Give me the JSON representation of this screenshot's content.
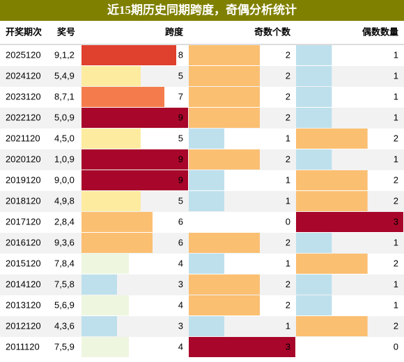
{
  "header": {
    "title": "近15期历史同期跨度，奇偶分析统计"
  },
  "table": {
    "columns": [
      "开奖期次",
      "奖号",
      "跨度",
      "奇数个数",
      "偶数数量"
    ],
    "rows": [
      [
        "2025120",
        "9,1,2",
        8,
        2,
        1
      ],
      [
        "2024120",
        "5,4,9",
        5,
        2,
        1
      ],
      [
        "2023120",
        "8,7,1",
        7,
        2,
        1
      ],
      [
        "2022120",
        "5,0,9",
        9,
        2,
        1
      ],
      [
        "2021120",
        "4,5,0",
        5,
        1,
        2
      ],
      [
        "2020120",
        "1,0,9",
        9,
        2,
        1
      ],
      [
        "2019120",
        "9,0,0",
        9,
        1,
        2
      ],
      [
        "2018120",
        "4,9,8",
        5,
        1,
        2
      ],
      [
        "2017120",
        "2,8,4",
        6,
        0,
        3
      ],
      [
        "2016120",
        "9,3,6",
        6,
        2,
        1
      ],
      [
        "2015120",
        "7,8,4",
        4,
        1,
        2
      ],
      [
        "2014120",
        "7,5,8",
        3,
        2,
        1
      ],
      [
        "2013120",
        "5,6,9",
        4,
        2,
        1
      ],
      [
        "2012120",
        "4,3,6",
        3,
        1,
        2
      ],
      [
        "2011120",
        "7,5,9",
        4,
        3,
        0
      ]
    ]
  }
}
